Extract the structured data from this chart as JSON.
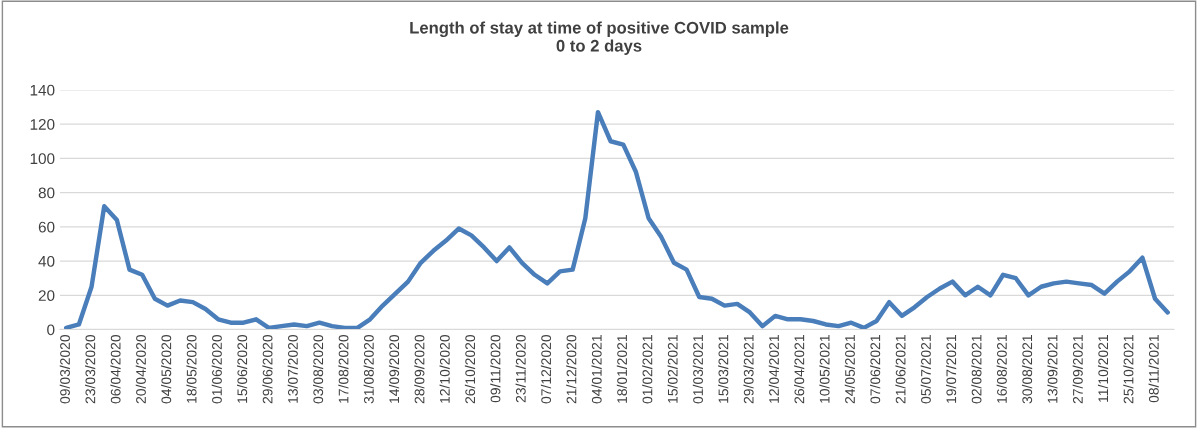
{
  "chart_data": {
    "type": "line",
    "title": "Length of stay at time of positive COVID sample\n0 to 2 days",
    "categories": [
      "09/03/2020",
      null,
      "23/03/2020",
      null,
      "06/04/2020",
      null,
      "20/04/2020",
      null,
      "04/05/2020",
      null,
      "18/05/2020",
      null,
      "01/06/2020",
      null,
      "15/06/2020",
      null,
      "29/06/2020",
      null,
      "13/07/2020",
      null,
      "03/08/2020",
      null,
      "17/08/2020",
      null,
      "31/08/2020",
      null,
      "14/09/2020",
      null,
      "28/09/2020",
      null,
      "12/10/2020",
      null,
      "26/10/2020",
      null,
      "09/11/2020",
      null,
      "23/11/2020",
      null,
      "07/12/2020",
      null,
      "21/12/2020",
      null,
      "04/01/2021",
      null,
      "18/01/2021",
      null,
      "01/02/2021",
      null,
      "15/02/2021",
      null,
      "01/03/2021",
      null,
      "15/03/2021",
      null,
      "29/03/2021",
      null,
      "12/04/2021",
      null,
      "26/04/2021",
      null,
      "10/05/2021",
      null,
      "24/05/2021",
      null,
      "07/06/2021",
      null,
      "21/06/2021",
      null,
      "05/07/2021",
      null,
      "19/07/2021",
      null,
      "02/08/2021",
      null,
      "16/08/2021",
      null,
      "30/08/2021",
      null,
      "13/09/2021",
      null,
      "27/09/2021",
      null,
      "11/10/2021",
      null,
      "25/10/2021",
      null,
      "08/11/2021",
      null
    ],
    "series": [
      {
        "color": "#4a7ebb",
        "values": [
          1,
          3,
          25,
          72,
          64,
          35,
          32,
          18,
          14,
          17,
          16,
          12,
          6,
          4,
          4,
          6,
          1,
          2,
          3,
          2,
          4,
          2,
          1,
          1,
          6,
          14,
          21,
          28,
          39,
          46,
          52,
          59,
          55,
          48,
          40,
          48,
          39,
          32,
          27,
          34,
          35,
          65,
          127,
          110,
          108,
          92,
          65,
          54,
          39,
          35,
          19,
          18,
          14,
          15,
          10,
          2,
          8,
          6,
          6,
          5,
          3,
          2,
          4,
          1,
          5,
          16,
          8,
          13,
          19,
          24,
          28,
          20,
          25,
          20,
          32,
          30,
          20,
          25,
          27,
          28,
          27,
          26,
          21,
          28,
          34,
          42,
          18,
          10
        ]
      }
    ],
    "ylim": [
      0,
      140
    ],
    "yticks": [
      0,
      20,
      40,
      60,
      80,
      100,
      120,
      140
    ],
    "grid": "y",
    "legend": false
  }
}
